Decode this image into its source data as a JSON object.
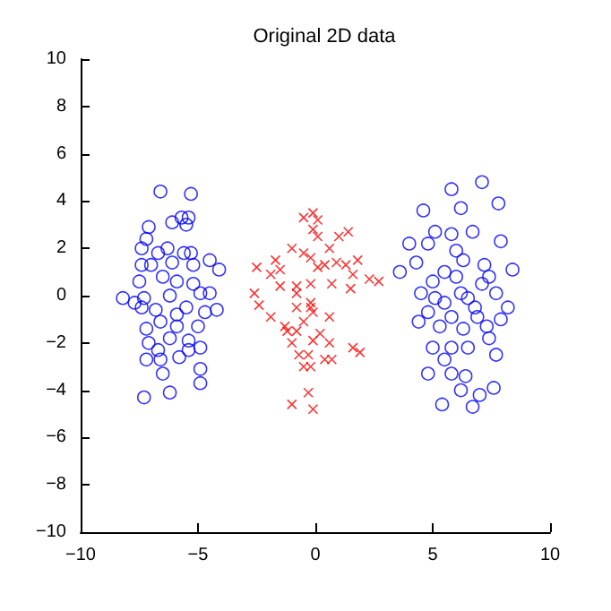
{
  "chart_data": {
    "type": "scatter",
    "title": "Original 2D data",
    "xlim": [
      -10,
      10
    ],
    "xticks": [
      -10,
      -5,
      0,
      5,
      10
    ],
    "ylim": [
      -10,
      10
    ],
    "yticks": [
      -10,
      -8,
      -6,
      -4,
      -2,
      0,
      2,
      4,
      6,
      8,
      10
    ],
    "series": [
      {
        "color": "#0000ff",
        "marker": "circle",
        "x": [
          -6.6,
          -5.3,
          -7.1,
          -7.2,
          -6.1,
          -5.7,
          -5.4,
          -5.5,
          -7.4,
          -6.7,
          -6.3,
          -5.6,
          -5.3,
          -7.4,
          -7.0,
          -6.1,
          -5.2,
          -4.5,
          -4.1,
          -7.5,
          -6.5,
          -5.9,
          -5.2,
          -8.2,
          -7.3,
          -6.2,
          -4.9,
          -4.5,
          -7.4,
          -6.8,
          -5.5,
          -4.2,
          -4.7,
          -7.2,
          -6.6,
          -5.9,
          -5.0,
          -7.1,
          -6.2,
          -5.4,
          -4.9,
          -7.2,
          -6.6,
          -5.8,
          -4.9,
          -6.5,
          -4.9,
          -7.3,
          -6.2,
          -7.7,
          -5.9,
          -6.7,
          -5.4
        ],
        "values": [
          4.4,
          4.3,
          2.9,
          2.4,
          3.1,
          3.3,
          3.3,
          3.0,
          2.0,
          1.8,
          2.0,
          1.8,
          1.8,
          1.3,
          1.3,
          1.4,
          1.3,
          1.5,
          1.1,
          0.6,
          0.8,
          0.6,
          0.5,
          -0.1,
          -0.1,
          0.0,
          0.1,
          0.1,
          -0.5,
          -0.6,
          -0.5,
          -0.6,
          -0.7,
          -1.4,
          -1.1,
          -1.3,
          -1.3,
          -2.0,
          -1.8,
          -1.9,
          -2.2,
          -2.7,
          -2.7,
          -2.6,
          -3.1,
          -3.3,
          -3.7,
          -4.3,
          -4.1,
          -0.3,
          -0.8,
          -2.3,
          -2.3
        ]
      },
      {
        "color": "#0000ff",
        "marker": "circle",
        "x": [
          7.1,
          5.8,
          7.8,
          4.6,
          6.2,
          5.1,
          5.8,
          6.7,
          4.0,
          4.8,
          7.9,
          6.0,
          4.3,
          6.3,
          7.2,
          3.6,
          8.4,
          5.5,
          6.0,
          7.4,
          5.0,
          7.1,
          4.5,
          6.2,
          7.7,
          5.5,
          6.5,
          8.2,
          4.8,
          5.8,
          6.9,
          4.4,
          7.9,
          5.3,
          6.3,
          7.3,
          7.4,
          5.0,
          5.8,
          6.5,
          5.5,
          7.7,
          4.8,
          5.8,
          6.4,
          6.2,
          7.6,
          7.0,
          5.4,
          6.7,
          5.1,
          6.8
        ],
        "values": [
          4.8,
          4.5,
          3.9,
          3.6,
          3.7,
          2.7,
          2.6,
          2.7,
          2.2,
          2.2,
          2.3,
          1.9,
          1.4,
          1.5,
          1.3,
          1.0,
          1.1,
          1.0,
          0.8,
          0.8,
          0.6,
          0.5,
          0.1,
          0.1,
          0.1,
          -0.3,
          -0.1,
          -0.5,
          -0.7,
          -0.9,
          -0.9,
          -1.1,
          -1.0,
          -1.3,
          -1.4,
          -1.3,
          -1.8,
          -2.2,
          -2.2,
          -2.2,
          -2.7,
          -2.5,
          -3.3,
          -3.3,
          -3.4,
          -4.0,
          -3.9,
          -4.2,
          -4.6,
          -4.7,
          -0.1,
          -0.5
        ]
      },
      {
        "color": "#ff0000",
        "marker": "cross",
        "x": [
          -0.5,
          -0.1,
          0.1,
          -0.1,
          0.1,
          1.0,
          1.4,
          -1.0,
          -0.5,
          -0.2,
          0.6,
          -2.5,
          -1.7,
          -1.5,
          -1.9,
          0.9,
          1.3,
          1.8,
          1.6,
          2.3,
          2.7,
          0.1,
          0.4,
          -1.5,
          -0.8,
          -0.2,
          0.7,
          1.5,
          -2.6,
          -0.8,
          -2.4,
          -0.8,
          -0.2,
          -0.1,
          -1.9,
          0.6,
          -0.5,
          -1.3,
          -0.8,
          0.2,
          -1.0,
          -0.1,
          0.6,
          1.6,
          1.9,
          -0.7,
          -0.3,
          0.4,
          0.7,
          -0.5,
          -0.2,
          -0.3,
          -1.0,
          -0.1,
          -1.2,
          -0.2
        ],
        "values": [
          3.3,
          3.5,
          3.2,
          2.8,
          2.5,
          2.5,
          2.7,
          2.0,
          1.8,
          1.6,
          2.0,
          1.2,
          1.5,
          1.1,
          0.9,
          1.4,
          1.3,
          1.5,
          0.9,
          0.7,
          0.6,
          1.2,
          1.3,
          0.4,
          0.4,
          0.5,
          0.5,
          0.3,
          0.1,
          0.1,
          -0.4,
          -0.5,
          -0.3,
          -0.7,
          -0.9,
          -0.9,
          -1.1,
          -1.3,
          -1.5,
          -1.6,
          -2.0,
          -1.9,
          -2.0,
          -2.2,
          -2.4,
          -2.5,
          -2.5,
          -2.7,
          -2.7,
          -3.0,
          -3.0,
          -4.1,
          -4.6,
          -4.8,
          -1.5,
          -0.5
        ]
      }
    ]
  }
}
